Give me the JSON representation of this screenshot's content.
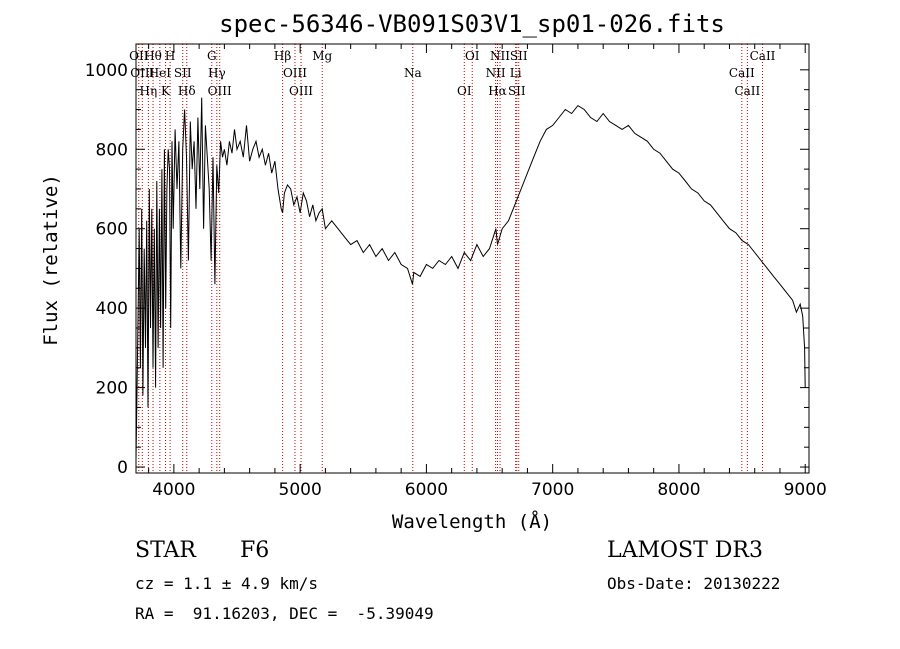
{
  "chart_data": {
    "type": "line",
    "title": "spec-56346-VB091S03V1_sp01-026.fits",
    "xlabel": "Wavelength (Å)",
    "ylabel": "Flux (relative)",
    "xlim": [
      3700,
      9030
    ],
    "ylim": [
      -15,
      1065
    ],
    "xticks": [
      4000,
      5000,
      6000,
      7000,
      8000,
      9000
    ],
    "yticks": [
      0,
      200,
      400,
      600,
      800,
      1000
    ],
    "series": [
      {
        "name": "flux",
        "x": [
          3700,
          3705,
          3715,
          3725,
          3735,
          3745,
          3755,
          3765,
          3775,
          3785,
          3795,
          3805,
          3815,
          3825,
          3835,
          3845,
          3855,
          3865,
          3875,
          3885,
          3895,
          3905,
          3915,
          3925,
          3935,
          3945,
          3955,
          3965,
          3975,
          3985,
          3995,
          4010,
          4025,
          4040,
          4055,
          4070,
          4085,
          4100,
          4115,
          4130,
          4145,
          4160,
          4175,
          4190,
          4205,
          4220,
          4235,
          4250,
          4265,
          4280,
          4295,
          4310,
          4325,
          4340,
          4355,
          4370,
          4385,
          4400,
          4420,
          4440,
          4460,
          4480,
          4500,
          4525,
          4550,
          4575,
          4600,
          4625,
          4650,
          4675,
          4700,
          4725,
          4750,
          4775,
          4800,
          4825,
          4850,
          4861,
          4875,
          4900,
          4925,
          4950,
          4975,
          5000,
          5025,
          5050,
          5075,
          5100,
          5125,
          5150,
          5175,
          5200,
          5250,
          5300,
          5350,
          5400,
          5450,
          5500,
          5550,
          5600,
          5650,
          5700,
          5750,
          5800,
          5850,
          5890,
          5900,
          5950,
          6000,
          6050,
          6100,
          6150,
          6200,
          6250,
          6300,
          6350,
          6400,
          6450,
          6500,
          6550,
          6563,
          6600,
          6650,
          6700,
          6750,
          6800,
          6850,
          6900,
          6950,
          7000,
          7050,
          7100,
          7150,
          7200,
          7250,
          7300,
          7350,
          7400,
          7450,
          7500,
          7550,
          7600,
          7650,
          7700,
          7750,
          7800,
          7850,
          7900,
          7950,
          8000,
          8050,
          8100,
          8150,
          8200,
          8250,
          8300,
          8350,
          8400,
          8450,
          8500,
          8550,
          8600,
          8650,
          8700,
          8750,
          8800,
          8850,
          8900,
          8930,
          8960,
          8980,
          8995,
          9000
        ],
        "values": [
          20,
          120,
          350,
          600,
          250,
          650,
          180,
          550,
          300,
          620,
          150,
          700,
          350,
          650,
          250,
          600,
          200,
          720,
          300,
          650,
          350,
          750,
          250,
          800,
          400,
          700,
          800,
          750,
          350,
          820,
          600,
          850,
          700,
          820,
          500,
          800,
          900,
          780,
          520,
          870,
          750,
          820,
          650,
          880,
          700,
          930,
          600,
          860,
          780,
          700,
          520,
          780,
          460,
          760,
          690,
          820,
          780,
          800,
          760,
          820,
          790,
          850,
          800,
          820,
          780,
          860,
          770,
          800,
          820,
          780,
          800,
          760,
          790,
          740,
          770,
          700,
          650,
          640,
          690,
          710,
          700,
          660,
          680,
          640,
          690,
          670,
          630,
          660,
          620,
          640,
          650,
          600,
          620,
          600,
          580,
          560,
          570,
          540,
          560,
          530,
          550,
          520,
          540,
          510,
          500,
          460,
          490,
          480,
          510,
          500,
          520,
          510,
          530,
          500,
          540,
          520,
          560,
          530,
          550,
          600,
          560,
          600,
          620,
          660,
          700,
          740,
          780,
          820,
          850,
          860,
          880,
          900,
          890,
          910,
          900,
          880,
          870,
          890,
          870,
          860,
          850,
          860,
          840,
          830,
          820,
          800,
          790,
          770,
          750,
          740,
          720,
          700,
          690,
          670,
          660,
          640,
          620,
          600,
          590,
          570,
          560,
          540,
          520,
          500,
          480,
          460,
          440,
          420,
          390,
          410,
          380,
          300,
          200
        ]
      }
    ],
    "lines": [
      {
        "wl": 3722,
        "label": "OII"
      },
      {
        "wl": 3750,
        "label": "OIII"
      },
      {
        "wl": 3798,
        "label": "Hη"
      },
      {
        "wl": 3835,
        "label": "Hθ"
      },
      {
        "wl": 3889,
        "label": "HeI"
      },
      {
        "wl": 3934,
        "label": "K"
      },
      {
        "wl": 3970,
        "label": "H"
      },
      {
        "wl": 4070,
        "label": "SII"
      },
      {
        "wl": 4102,
        "label": "Hδ"
      },
      {
        "wl": 4300,
        "label": "G"
      },
      {
        "wl": 4340,
        "label": "Hγ"
      },
      {
        "wl": 4363,
        "label": "OIII"
      },
      {
        "wl": 4861,
        "label": "Hβ"
      },
      {
        "wl": 4959,
        "label": "OIII"
      },
      {
        "wl": 5007,
        "label": "OIII"
      },
      {
        "wl": 5175,
        "label": "Mg"
      },
      {
        "wl": 5892,
        "label": "Na"
      },
      {
        "wl": 6300,
        "label": "OI"
      },
      {
        "wl": 6363,
        "label": "OI"
      },
      {
        "wl": 6548,
        "label": "NII"
      },
      {
        "wl": 6563,
        "label": "Hα"
      },
      {
        "wl": 6583,
        "label": "NII"
      },
      {
        "wl": 6707,
        "label": "Li"
      },
      {
        "wl": 6716,
        "label": "SII"
      },
      {
        "wl": 6731,
        "label": "SII"
      },
      {
        "wl": 8498,
        "label": "CaII"
      },
      {
        "wl": 8542,
        "label": "CaII"
      },
      {
        "wl": 8662,
        "label": "CaII"
      }
    ],
    "grid": false,
    "line_color": "#000000",
    "marker_line_color": "#cc0000"
  },
  "info": {
    "object_class": "STAR",
    "subclass": "F6",
    "survey": "LAMOST DR3",
    "cz": "cz = 1.1 ± 4.9 km/s",
    "obs_date": "Obs-Date: 20130222",
    "coords": "RA =  91.16203, DEC =  -5.39049"
  }
}
